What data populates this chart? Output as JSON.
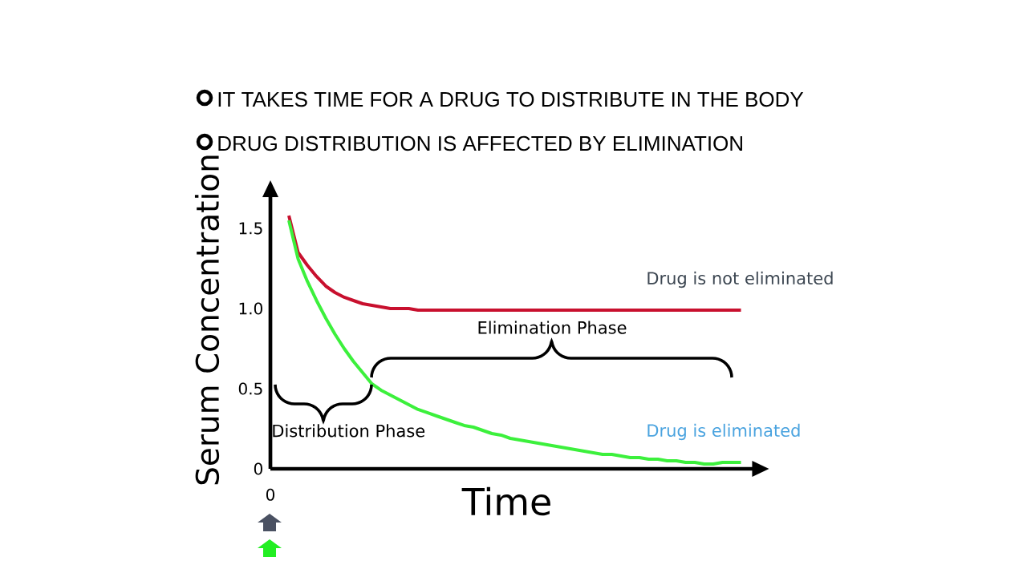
{
  "chart_data": {
    "type": "line",
    "title": "IT TAKES TIME FOR A DRUG TO DISTRIBUTE IN THE BODY",
    "subtitle": "DRUG DISTRIBUTION IS AFFECTED BY ELIMINATION",
    "xlabel": "Time",
    "ylabel": "Serum Concentration",
    "categories": [
      "0",
      null,
      null,
      null,
      null,
      null,
      null,
      null,
      null,
      null,
      null,
      null,
      null,
      null,
      null,
      null,
      null,
      null,
      null,
      null,
      null,
      null,
      null,
      null,
      null,
      null,
      null,
      null,
      null,
      null,
      null,
      null,
      null,
      null,
      null,
      null,
      null,
      null,
      null,
      null,
      null,
      null,
      null,
      null,
      null,
      null,
      null,
      null,
      null,
      null,
      null,
      null
    ],
    "series": [
      {
        "name": "Drug is not eliminated",
        "color": "#c8102e",
        "values": [
          null,
          null,
          1.58,
          1.35,
          1.27,
          1.2,
          1.14,
          1.1,
          1.07,
          1.05,
          1.03,
          1.02,
          1.01,
          1.0,
          1.0,
          1.0,
          0.99,
          0.99,
          0.99,
          0.99,
          0.99,
          0.99,
          0.99,
          0.99,
          0.99,
          0.99,
          0.99,
          0.99,
          0.99,
          0.99,
          0.99,
          0.99,
          0.99,
          0.99,
          0.99,
          0.99,
          0.99,
          0.99,
          0.99,
          0.99,
          0.99,
          0.99,
          0.99,
          0.99,
          0.99,
          0.99,
          0.99,
          0.99,
          0.99,
          0.99,
          0.99,
          0.99
        ]
      },
      {
        "name": "Drug is eliminated",
        "color": "#3cf03c",
        "values": [
          null,
          null,
          1.55,
          1.31,
          1.17,
          1.05,
          0.94,
          0.84,
          0.75,
          0.67,
          0.6,
          0.53,
          0.49,
          0.46,
          0.43,
          0.4,
          0.37,
          0.35,
          0.33,
          0.31,
          0.29,
          0.27,
          0.26,
          0.24,
          0.22,
          0.21,
          0.19,
          0.18,
          0.17,
          0.16,
          0.15,
          0.14,
          0.13,
          0.12,
          0.11,
          0.1,
          0.09,
          0.09,
          0.08,
          0.07,
          0.07,
          0.06,
          0.06,
          0.05,
          0.05,
          0.04,
          0.04,
          0.03,
          0.03,
          0.04,
          0.04,
          0.04
        ]
      }
    ],
    "ylim": [
      0,
      1.7
    ],
    "yticks": [
      0,
      0.5,
      {
        "value": 1,
        "label": "1.0"
      },
      1.5
    ],
    "annotations": [
      "Elimination Phase",
      "Distribution Phase"
    ]
  }
}
